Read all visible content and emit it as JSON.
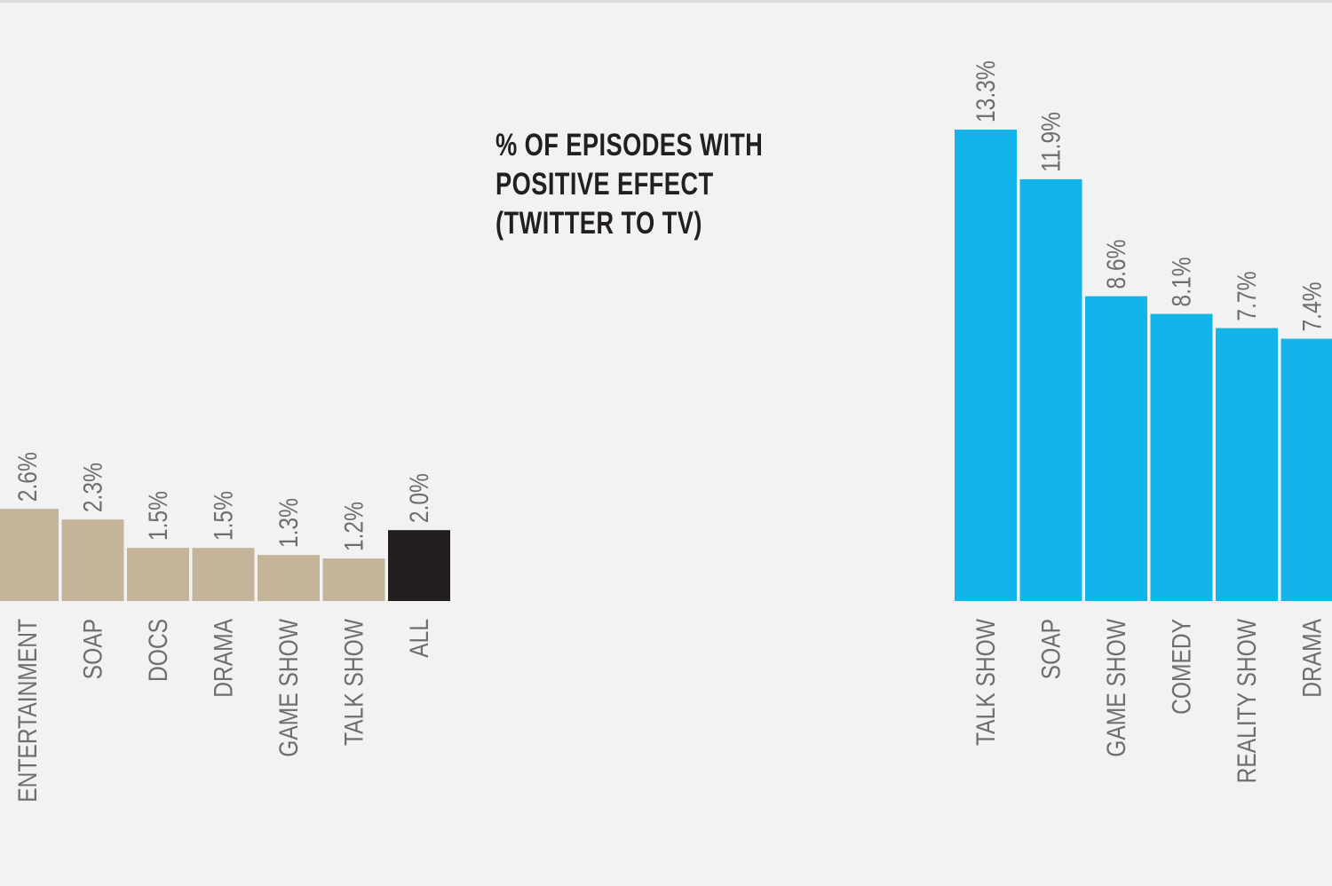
{
  "chart_data": [
    {
      "type": "bar",
      "title": "",
      "xlabel": "",
      "ylabel": "",
      "ylim": [
        0,
        13.3
      ],
      "grid": false,
      "categories": [
        "ENTERTAINMENT",
        "SOAP",
        "DOCS",
        "DRAMA",
        "GAME SHOW",
        "TALK SHOW",
        "ALL"
      ],
      "value_labels": [
        "2.6%",
        "2.3%",
        "1.5%",
        "1.5%",
        "1.3%",
        "1.2%",
        "2.0%"
      ],
      "values": [
        2.6,
        2.3,
        1.5,
        1.5,
        1.3,
        1.2,
        2.0
      ],
      "colors": [
        "#c4b59a",
        "#c4b59a",
        "#c4b59a",
        "#c4b59a",
        "#c4b59a",
        "#c4b59a",
        "#231f20"
      ]
    },
    {
      "type": "bar",
      "title": "",
      "xlabel": "",
      "ylabel": "",
      "ylim": [
        0,
        13.3
      ],
      "grid": false,
      "categories": [
        "TALK SHOW",
        "SOAP",
        "GAME SHOW",
        "COMEDY",
        "REALITY SHOW",
        "DRAMA"
      ],
      "value_labels": [
        "13.3%",
        "11.9%",
        "8.6%",
        "8.1%",
        "7.7%",
        "7.4%"
      ],
      "values": [
        13.3,
        11.9,
        8.6,
        8.1,
        7.7,
        7.4
      ],
      "colors": [
        "#12b5ea",
        "#12b5ea",
        "#12b5ea",
        "#12b5ea",
        "#12b5ea",
        "#12b5ea"
      ]
    }
  ],
  "annotation": {
    "lines": [
      "% OF EPISODES WITH",
      "POSITIVE EFFECT",
      "(TWITTER TO TV)"
    ]
  }
}
